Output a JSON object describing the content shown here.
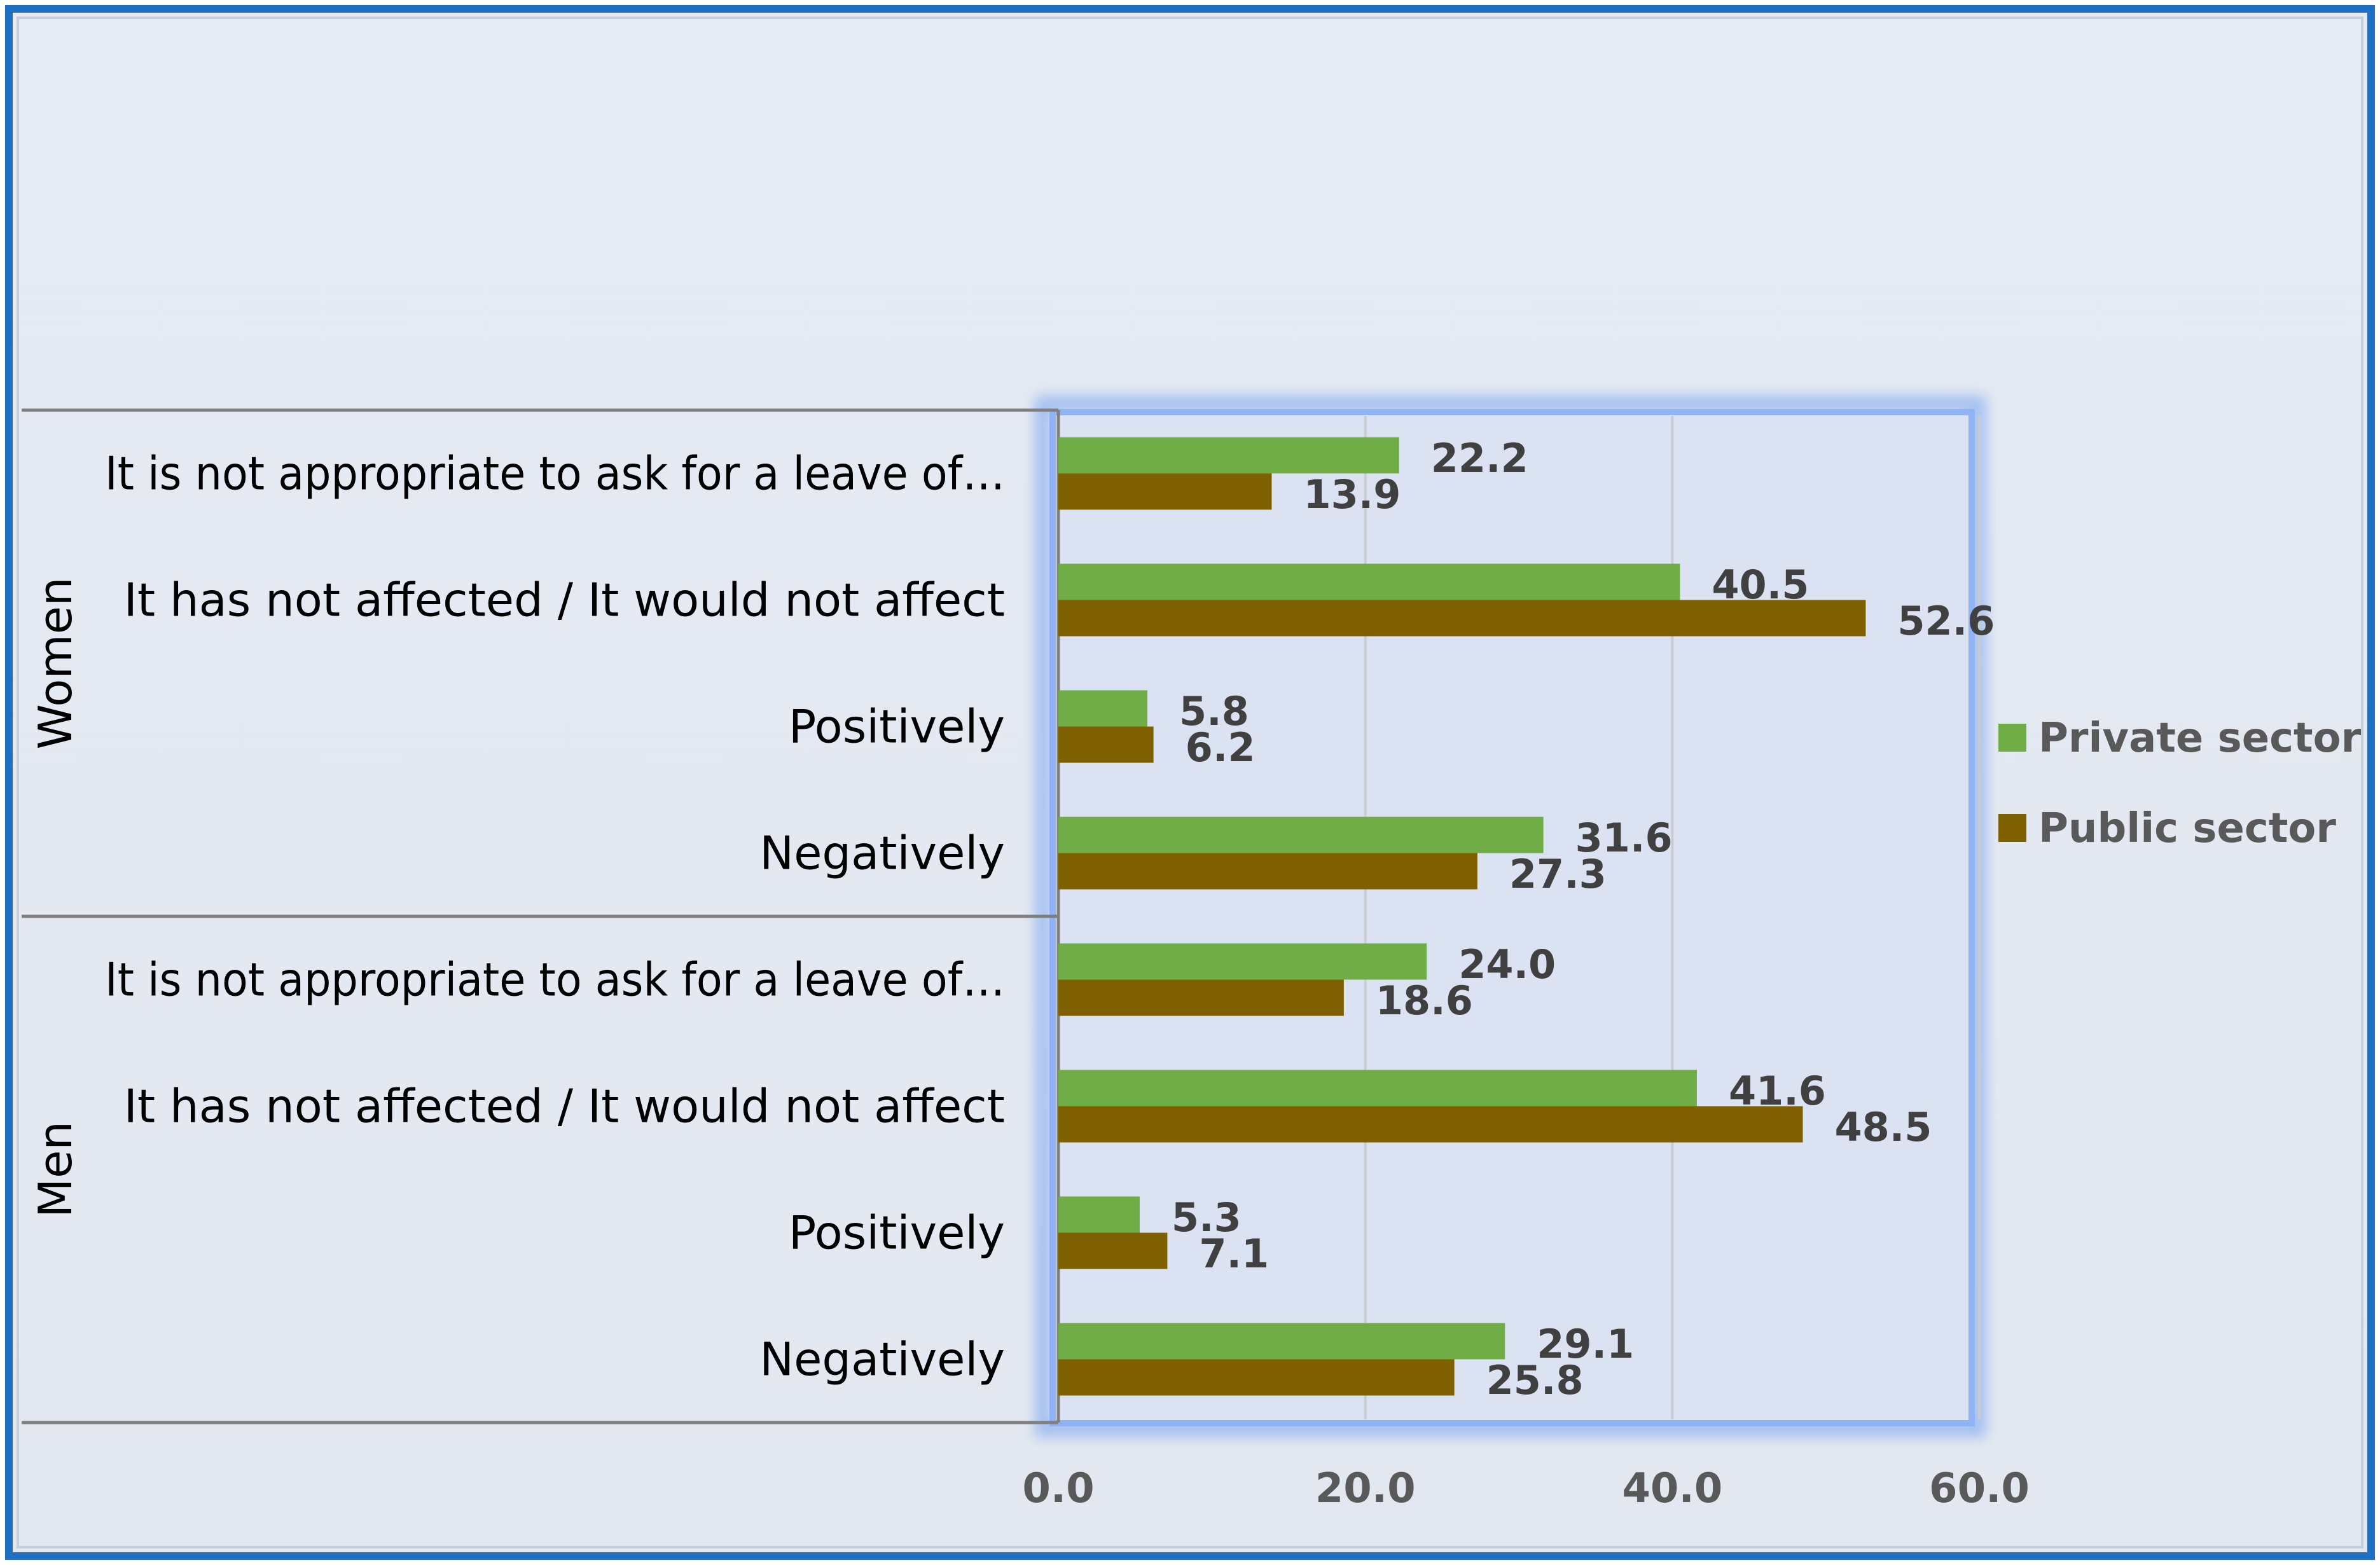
{
  "chart_data": {
    "type": "bar",
    "orientation": "horizontal",
    "title": "",
    "xlabel": "",
    "ylabel": "",
    "xlim": [
      0,
      60
    ],
    "x_ticks": [
      "0.0",
      "20.0",
      "40.0",
      "60.0"
    ],
    "x_tick_values": [
      0,
      20,
      40,
      60
    ],
    "grid": true,
    "legend_position": "right",
    "groups": [
      {
        "name": "Women",
        "categories": [
          "It is not appropriate to ask for a leave of…",
          "It has not affected / It would not affect",
          "Positively",
          "Negatively"
        ]
      },
      {
        "name": "Men",
        "categories": [
          "It is not appropriate to ask for a leave of…",
          "It has not affected / It would not affect",
          "Positively",
          "Negatively"
        ]
      }
    ],
    "series": [
      {
        "name": "Private sector",
        "color": "#70ad47",
        "values": [
          22.2,
          40.5,
          5.8,
          31.6,
          24.0,
          41.6,
          5.3,
          29.1
        ],
        "labels": [
          "22.2",
          "40.5",
          "5.8",
          "31.6",
          "24.0",
          "41.6",
          "5.3",
          "29.1"
        ]
      },
      {
        "name": "Public sector",
        "color": "#7f6000",
        "values": [
          13.9,
          52.6,
          6.2,
          27.3,
          18.6,
          48.5,
          7.1,
          25.8
        ],
        "labels": [
          "13.9",
          "52.6",
          "6.2",
          "27.3",
          "18.6",
          "48.5",
          "7.1",
          "25.8"
        ]
      }
    ]
  }
}
